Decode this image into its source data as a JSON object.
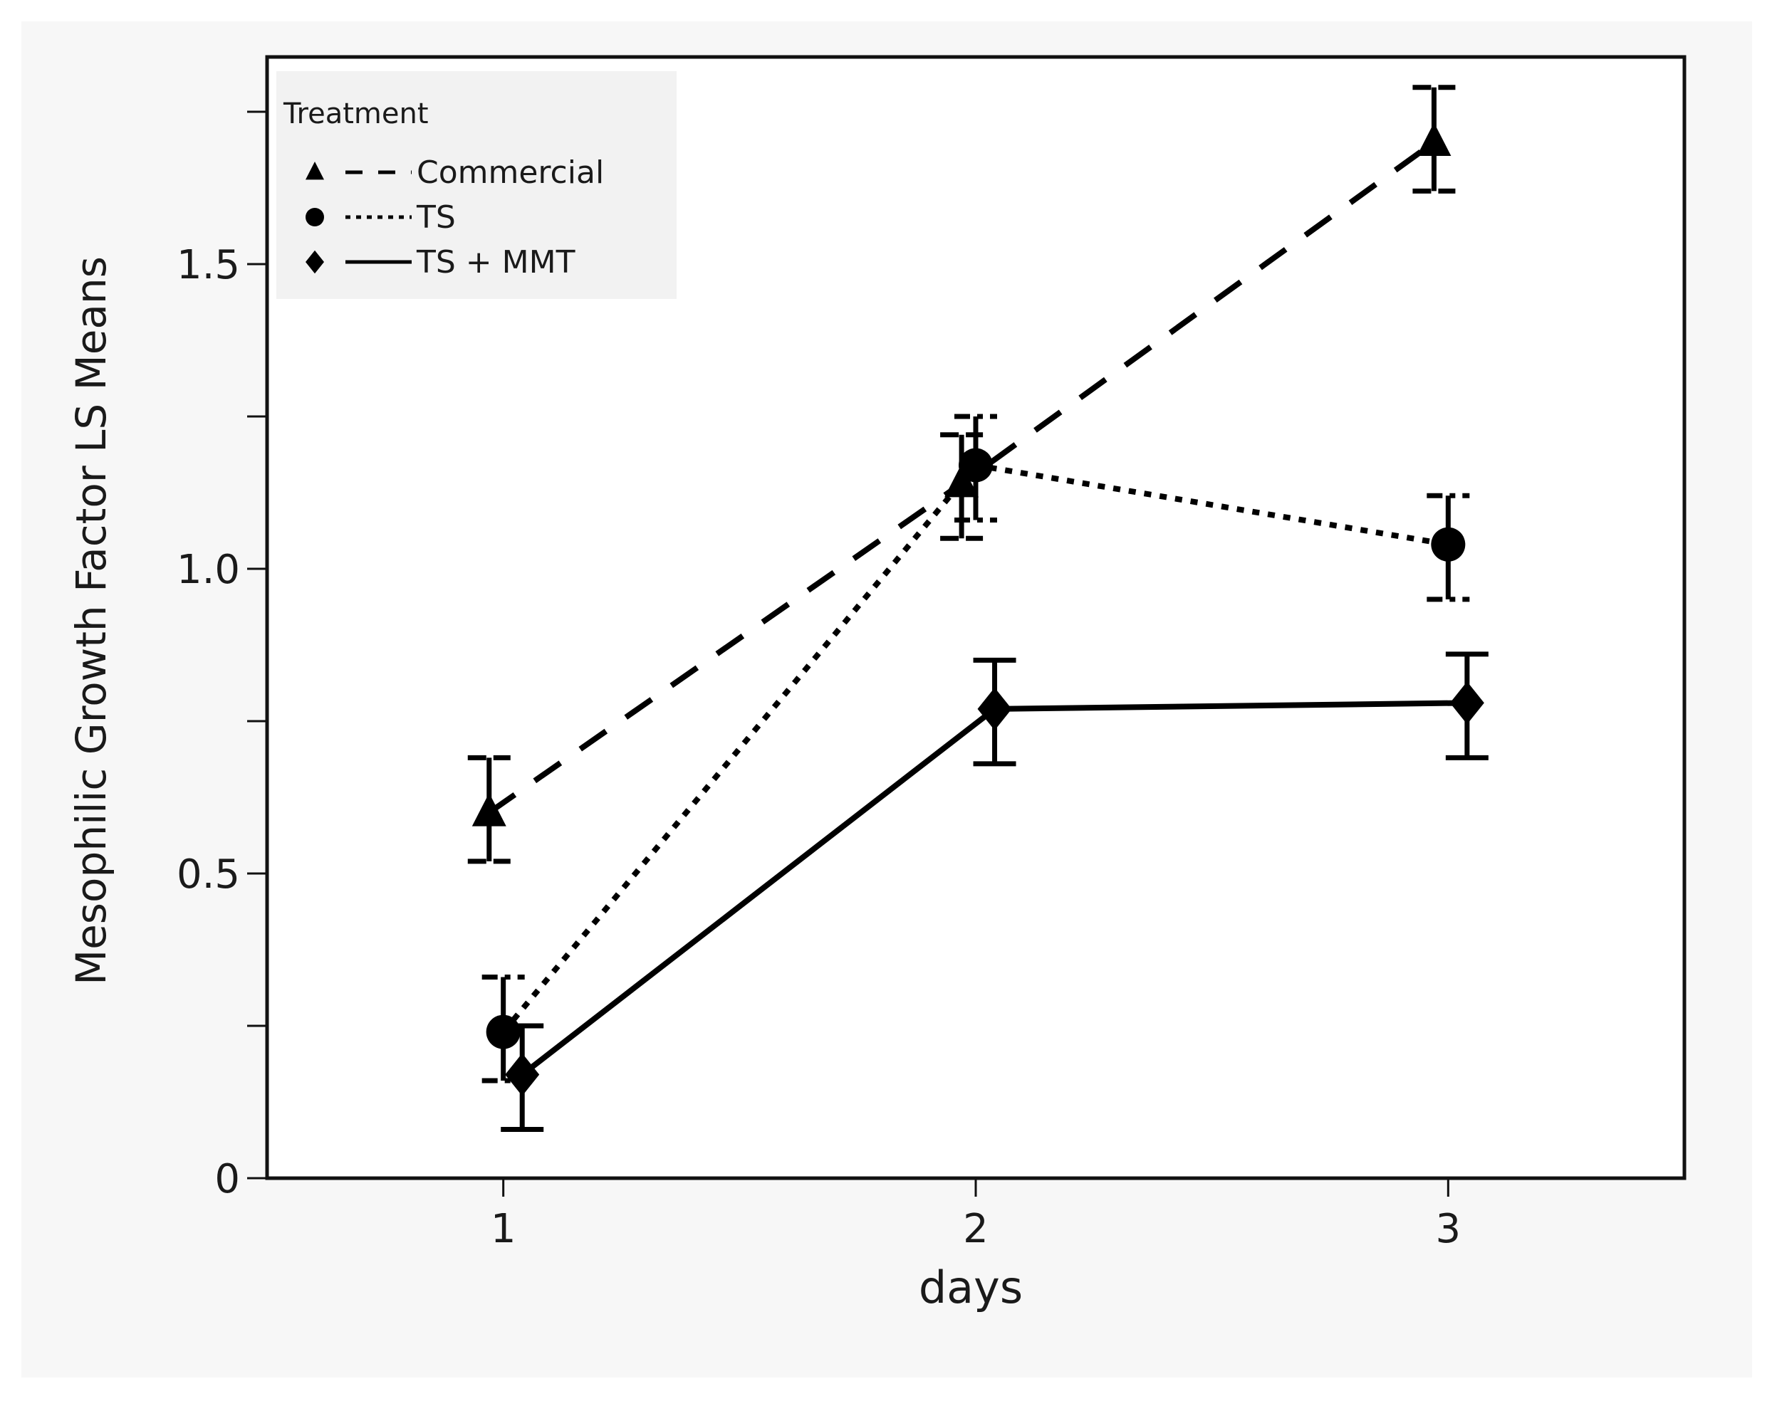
{
  "chart_data": {
    "type": "line",
    "title": "",
    "xlabel": "days",
    "ylabel": "Mesophilic Growth Factor LS Means",
    "x": [
      1,
      2,
      3
    ],
    "xlim": [
      0.5,
      3.5
    ],
    "ylim": [
      0,
      1.84
    ],
    "x_ticks": [
      "1",
      "2",
      "3"
    ],
    "y_ticks": [
      {
        "value": 0,
        "label": "0"
      },
      {
        "value": 0.25,
        "label": ""
      },
      {
        "value": 0.5,
        "label": "0.5"
      },
      {
        "value": 0.75,
        "label": ""
      },
      {
        "value": 1.0,
        "label": "1.0"
      },
      {
        "value": 1.25,
        "label": ""
      },
      {
        "value": 1.5,
        "label": "1.5"
      },
      {
        "value": 1.75,
        "label": ""
      }
    ],
    "grid": false,
    "legend": {
      "title": "Treatment",
      "position": "top-left"
    },
    "series": [
      {
        "name": "Commercial",
        "marker": "triangle",
        "line_style": "dashed",
        "x_offset": -0.03,
        "values": [
          0.6,
          1.14,
          1.7
        ],
        "error_low": [
          0.52,
          1.05,
          1.62
        ],
        "error_high": [
          0.69,
          1.22,
          1.79
        ]
      },
      {
        "name": "TS",
        "marker": "circle",
        "line_style": "dotted",
        "x_offset": 0.0,
        "values": [
          0.24,
          1.17,
          1.04
        ],
        "error_low": [
          0.16,
          1.08,
          0.95
        ],
        "error_high": [
          0.33,
          1.25,
          1.12
        ]
      },
      {
        "name": "TS + MMT",
        "marker": "diamond",
        "line_style": "solid",
        "x_offset": 0.04,
        "values": [
          0.17,
          0.77,
          0.78
        ],
        "error_low": [
          0.08,
          0.68,
          0.69
        ],
        "error_high": [
          0.25,
          0.85,
          0.86
        ]
      }
    ]
  }
}
